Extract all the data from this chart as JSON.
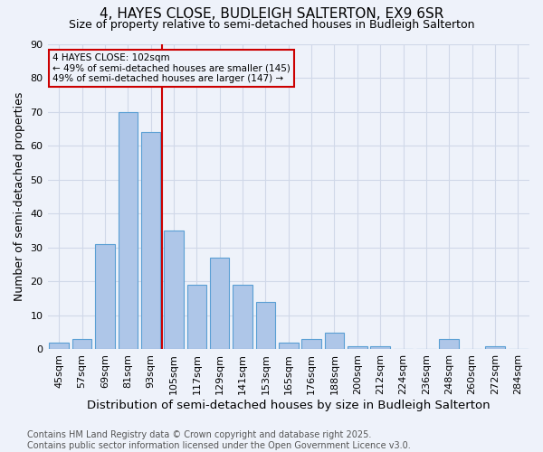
{
  "title": "4, HAYES CLOSE, BUDLEIGH SALTERTON, EX9 6SR",
  "subtitle": "Size of property relative to semi-detached houses in Budleigh Salterton",
  "xlabel": "Distribution of semi-detached houses by size in Budleigh Salterton",
  "ylabel": "Number of semi-detached properties",
  "footnote": "Contains HM Land Registry data © Crown copyright and database right 2025.\nContains public sector information licensed under the Open Government Licence v3.0.",
  "categories": [
    "45sqm",
    "57sqm",
    "69sqm",
    "81sqm",
    "93sqm",
    "105sqm",
    "117sqm",
    "129sqm",
    "141sqm",
    "153sqm",
    "165sqm",
    "176sqm",
    "188sqm",
    "200sqm",
    "212sqm",
    "224sqm",
    "236sqm",
    "248sqm",
    "260sqm",
    "272sqm",
    "284sqm"
  ],
  "values": [
    2,
    3,
    31,
    70,
    64,
    35,
    19,
    27,
    19,
    14,
    2,
    3,
    5,
    1,
    1,
    0,
    0,
    3,
    0,
    1,
    0
  ],
  "bar_color": "#aec6e8",
  "bar_edge_color": "#5a9fd4",
  "grid_color": "#d0d8e8",
  "background_color": "#eef2fa",
  "vline_color": "#cc0000",
  "vline_index": 5,
  "annotation_title": "4 HAYES CLOSE: 102sqm",
  "annotation_line1": "← 49% of semi-detached houses are smaller (145)",
  "annotation_line2": "49% of semi-detached houses are larger (147) →",
  "annotation_box_color": "#cc0000",
  "ylim": [
    0,
    90
  ],
  "yticks": [
    0,
    10,
    20,
    30,
    40,
    50,
    60,
    70,
    80,
    90
  ],
  "title_fontsize": 11,
  "subtitle_fontsize": 9,
  "xlabel_fontsize": 9.5,
  "ylabel_fontsize": 9,
  "tick_fontsize": 8,
  "footnote_fontsize": 7,
  "annotation_fontsize": 7.5
}
